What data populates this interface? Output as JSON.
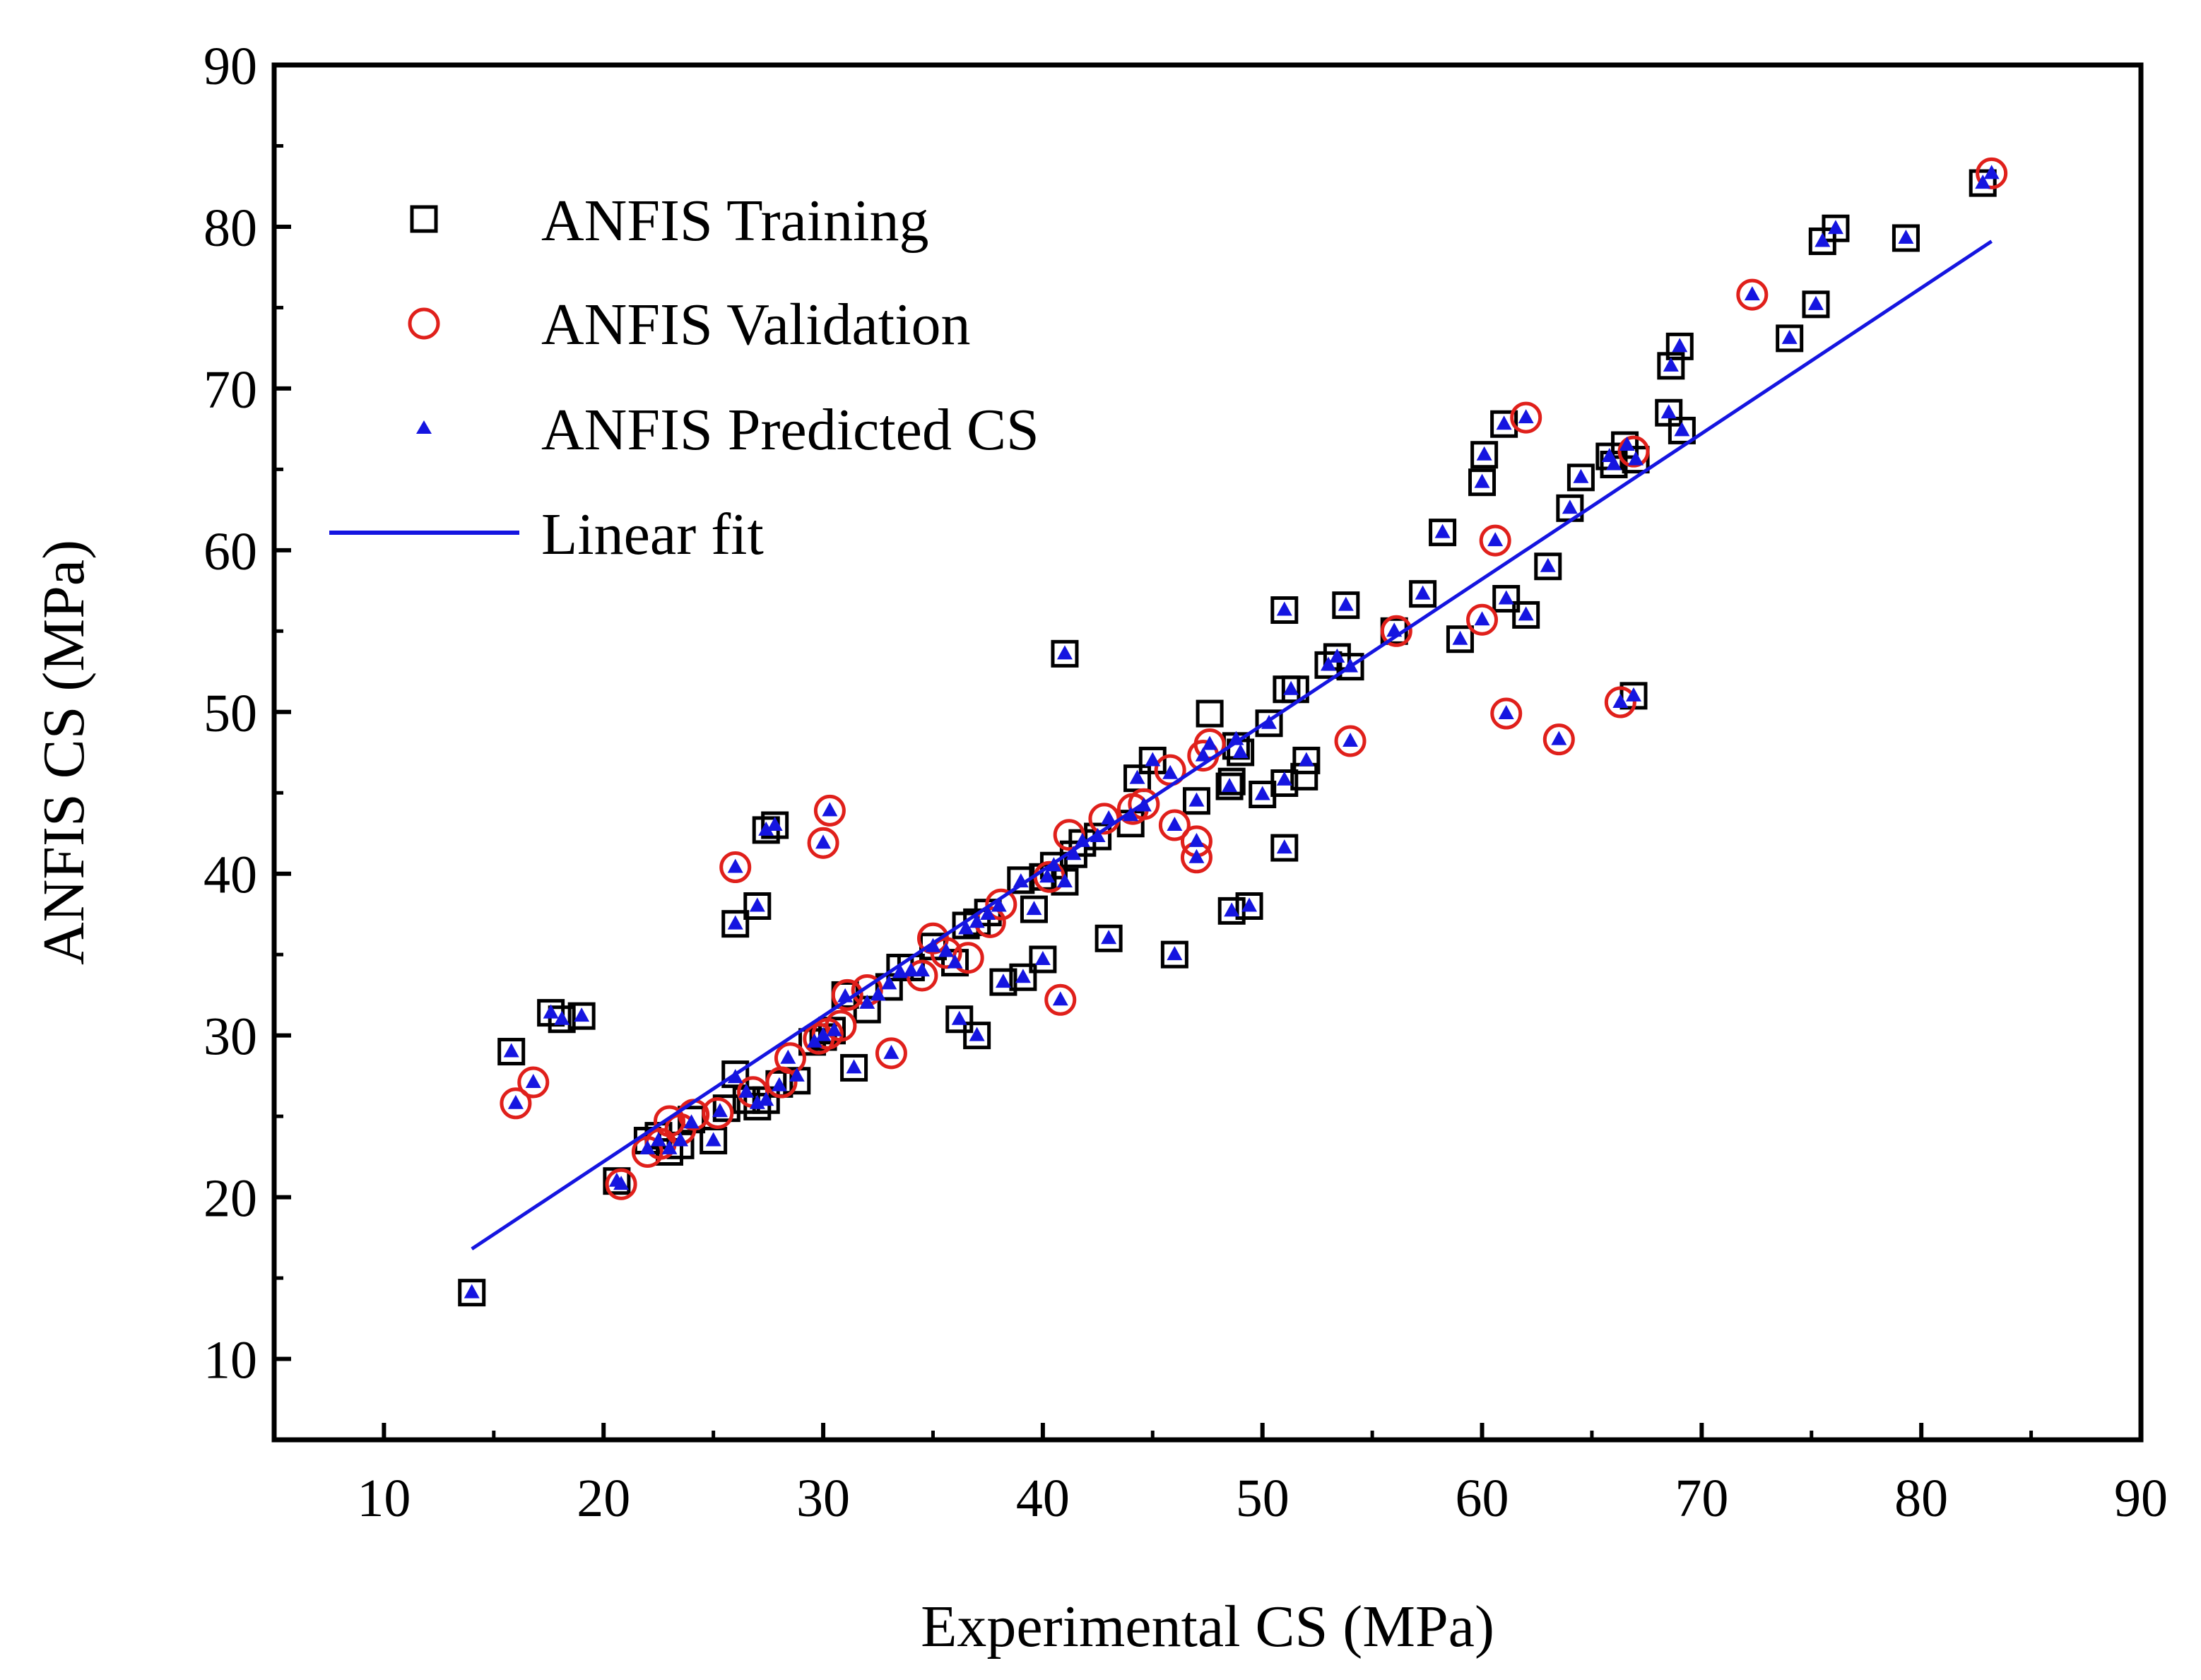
{
  "chart_data": {
    "type": "scatter",
    "xlabel": "Experimental CS (MPa)",
    "ylabel": "ANFIS CS (MPa)",
    "xlim": [
      5,
      90
    ],
    "ylim": [
      5,
      90
    ],
    "xticks": [
      10,
      20,
      30,
      40,
      50,
      60,
      70,
      80,
      90
    ],
    "yticks": [
      10,
      20,
      30,
      40,
      50,
      60,
      70,
      80,
      90
    ],
    "grid": false,
    "legend_position": "top-left",
    "colors": {
      "training": "#000000",
      "validation": "#e0201b",
      "predicted": "#1515e0",
      "fit": "#1515e0"
    },
    "legend": {
      "training": "ANFIS Training",
      "validation": "ANFIS Validation",
      "predicted": "ANFIS Predicted CS",
      "fit": "Linear fit"
    },
    "series": [
      {
        "name": "ANFIS Training",
        "key": "training",
        "marker": "square",
        "points": [
          [
            14,
            14.1
          ],
          [
            15.8,
            29
          ],
          [
            17.6,
            31.4
          ],
          [
            18.1,
            31
          ],
          [
            19,
            31.2
          ],
          [
            20.6,
            21
          ],
          [
            22,
            23.5
          ],
          [
            22.5,
            23.8
          ],
          [
            23,
            22.8
          ],
          [
            23.5,
            23.2
          ],
          [
            24,
            24.8
          ],
          [
            25,
            23.5
          ],
          [
            25.6,
            25.5
          ],
          [
            26,
            27.6
          ],
          [
            26.5,
            26
          ],
          [
            27,
            25.6
          ],
          [
            27.4,
            26
          ],
          [
            28,
            27
          ],
          [
            28.8,
            27.2
          ],
          [
            29.5,
            29.6
          ],
          [
            30,
            29.9
          ],
          [
            30.4,
            30.3
          ],
          [
            31,
            32.5
          ],
          [
            31.4,
            28
          ],
          [
            32,
            31.6
          ],
          [
            33,
            33
          ],
          [
            33.5,
            34.2
          ],
          [
            34,
            34.2
          ],
          [
            35,
            35.5
          ],
          [
            36,
            34.5
          ],
          [
            36.5,
            36.8
          ],
          [
            37,
            37
          ],
          [
            37.5,
            37.6
          ],
          [
            39,
            39.6
          ],
          [
            39.6,
            37.8
          ],
          [
            40,
            39.8
          ],
          [
            40.5,
            40.5
          ],
          [
            41,
            39.5
          ],
          [
            41.4,
            41.2
          ],
          [
            41.8,
            41.9
          ],
          [
            42.5,
            42.3
          ],
          [
            44,
            43.1
          ],
          [
            44.3,
            45.9
          ],
          [
            45,
            47
          ],
          [
            47,
            44.5
          ],
          [
            47.6,
            49.9
          ],
          [
            48.5,
            45.4
          ],
          [
            48.6,
            45.7
          ],
          [
            48.8,
            47.9
          ],
          [
            49,
            47.5
          ],
          [
            50,
            44.9
          ],
          [
            50.3,
            49.3
          ],
          [
            51,
            45.6
          ],
          [
            51.1,
            51.4
          ],
          [
            51.5,
            51.4
          ],
          [
            52,
            47
          ],
          [
            51.9,
            46
          ],
          [
            53,
            52.9
          ],
          [
            53.4,
            53.4
          ],
          [
            54,
            52.8
          ],
          [
            26,
            36.9
          ],
          [
            27,
            38
          ],
          [
            27.4,
            42.7
          ],
          [
            27.8,
            43
          ],
          [
            36.2,
            31
          ],
          [
            37,
            30
          ],
          [
            38.2,
            33.3
          ],
          [
            39.1,
            33.6
          ],
          [
            40,
            34.7
          ],
          [
            43,
            36
          ],
          [
            46,
            35
          ],
          [
            48.6,
            37.7
          ],
          [
            49.4,
            38
          ],
          [
            51,
            41.6
          ],
          [
            41,
            53.6
          ],
          [
            51,
            56.3
          ],
          [
            53.8,
            56.6
          ],
          [
            56,
            55
          ],
          [
            57.3,
            57.3
          ],
          [
            58.2,
            61.1
          ],
          [
            59,
            54.5
          ],
          [
            60,
            64.2
          ],
          [
            60.1,
            65.9
          ],
          [
            61,
            67.8
          ],
          [
            61.1,
            57
          ],
          [
            62,
            56
          ],
          [
            63,
            59
          ],
          [
            64,
            62.6
          ],
          [
            64.5,
            64.5
          ],
          [
            65.8,
            65.8
          ],
          [
            66,
            65.3
          ],
          [
            66.5,
            66.5
          ],
          [
            67,
            65.6
          ],
          [
            66.9,
            51
          ],
          [
            68.6,
            71.4
          ],
          [
            68.5,
            68.5
          ],
          [
            69,
            72.6
          ],
          [
            69.1,
            67.4
          ],
          [
            74,
            73.1
          ],
          [
            75.2,
            75.2
          ],
          [
            75.5,
            79.1
          ],
          [
            76.1,
            79.9
          ],
          [
            79.3,
            79.3
          ],
          [
            82.8,
            82.7
          ]
        ]
      },
      {
        "name": "ANFIS Validation",
        "key": "validation",
        "marker": "circle",
        "points": [
          [
            16,
            25.8
          ],
          [
            16.8,
            27.1
          ],
          [
            20.8,
            20.8
          ],
          [
            22,
            22.8
          ],
          [
            22.6,
            23.3
          ],
          [
            23,
            24.7
          ],
          [
            23.5,
            24.2
          ],
          [
            24.1,
            25.1
          ],
          [
            25.2,
            25.2
          ],
          [
            26.8,
            26.5
          ],
          [
            28.1,
            27.1
          ],
          [
            28.5,
            28.6
          ],
          [
            29.8,
            29.8
          ],
          [
            30.2,
            30.1
          ],
          [
            30.8,
            30.6
          ],
          [
            31.1,
            32.5
          ],
          [
            32,
            32.8
          ],
          [
            26,
            40.4
          ],
          [
            30,
            41.9
          ],
          [
            30.3,
            43.9
          ],
          [
            33.1,
            28.9
          ],
          [
            34.5,
            33.7
          ],
          [
            35,
            36
          ],
          [
            35.6,
            35.1
          ],
          [
            36.6,
            34.8
          ],
          [
            37.6,
            37
          ],
          [
            38.1,
            38.1
          ],
          [
            40.3,
            39.8
          ],
          [
            40.8,
            32.2
          ],
          [
            41.2,
            42.4
          ],
          [
            42.8,
            43.4
          ],
          [
            44.1,
            44
          ],
          [
            44.6,
            44.3
          ],
          [
            45.8,
            46.4
          ],
          [
            46,
            43
          ],
          [
            47,
            42
          ],
          [
            47,
            41
          ],
          [
            47.3,
            47.3
          ],
          [
            47.6,
            48
          ],
          [
            54,
            48.2
          ],
          [
            56.1,
            55
          ],
          [
            60,
            55.7
          ],
          [
            60.6,
            60.6
          ],
          [
            61.1,
            49.9
          ],
          [
            62,
            68.2
          ],
          [
            63.5,
            48.3
          ],
          [
            66.3,
            50.6
          ],
          [
            66.9,
            66.1
          ],
          [
            72.3,
            75.8
          ],
          [
            83.2,
            83.3
          ]
        ]
      },
      {
        "name": "ANFIS Predicted CS",
        "key": "predicted",
        "marker": "triangle",
        "points": [
          [
            14,
            14.1
          ],
          [
            15.8,
            29
          ],
          [
            17.6,
            31.4
          ],
          [
            18.1,
            31
          ],
          [
            19,
            31.2
          ],
          [
            16,
            25.8
          ],
          [
            16.8,
            27.1
          ],
          [
            20.6,
            21
          ],
          [
            20.8,
            20.8
          ],
          [
            22,
            23
          ],
          [
            22.5,
            23.5
          ],
          [
            23,
            23
          ],
          [
            23.5,
            23.5
          ],
          [
            24,
            24.6
          ],
          [
            25,
            23.5
          ],
          [
            25.3,
            25.3
          ],
          [
            26,
            27.4
          ],
          [
            26.5,
            26.5
          ],
          [
            27,
            25.8
          ],
          [
            27.4,
            26
          ],
          [
            28,
            26.9
          ],
          [
            28.4,
            28.6
          ],
          [
            28.8,
            27.5
          ],
          [
            29.6,
            29.6
          ],
          [
            30,
            30
          ],
          [
            30.5,
            30.3
          ],
          [
            31,
            32.4
          ],
          [
            31.4,
            28
          ],
          [
            32,
            32
          ],
          [
            32.5,
            32.5
          ],
          [
            33,
            33.2
          ],
          [
            33.5,
            33.9
          ],
          [
            34,
            34
          ],
          [
            34.5,
            34
          ],
          [
            35,
            35.5
          ],
          [
            35.6,
            35.2
          ],
          [
            36,
            34.5
          ],
          [
            36.5,
            36.6
          ],
          [
            37,
            37
          ],
          [
            37.5,
            37.5
          ],
          [
            38,
            38
          ],
          [
            39,
            39.5
          ],
          [
            39.6,
            37.8
          ],
          [
            40.2,
            39.8
          ],
          [
            40.5,
            40.5
          ],
          [
            41,
            39.5
          ],
          [
            41.4,
            41.2
          ],
          [
            41.8,
            42
          ],
          [
            42.5,
            42.3
          ],
          [
            43,
            43.4
          ],
          [
            44,
            43.6
          ],
          [
            44.3,
            45.9
          ],
          [
            44.6,
            44.2
          ],
          [
            45,
            47
          ],
          [
            45.8,
            46.2
          ],
          [
            46,
            43
          ],
          [
            47,
            44.5
          ],
          [
            47.3,
            47.3
          ],
          [
            47.6,
            48
          ],
          [
            48.5,
            45.4
          ],
          [
            48.8,
            48.3
          ],
          [
            49,
            47.5
          ],
          [
            50,
            44.9
          ],
          [
            50.3,
            49.3
          ],
          [
            51,
            45.8
          ],
          [
            51.3,
            51.4
          ],
          [
            52,
            47
          ],
          [
            53,
            52.9
          ],
          [
            53.4,
            53.4
          ],
          [
            54,
            52.8
          ],
          [
            26,
            40.4
          ],
          [
            30,
            41.9
          ],
          [
            30.3,
            43.9
          ],
          [
            26,
            36.9
          ],
          [
            27,
            38
          ],
          [
            27.4,
            42.7
          ],
          [
            27.8,
            43
          ],
          [
            33.1,
            28.9
          ],
          [
            36.2,
            31
          ],
          [
            37,
            30
          ],
          [
            38.2,
            33.3
          ],
          [
            39.1,
            33.6
          ],
          [
            40,
            34.7
          ],
          [
            40.8,
            32.2
          ],
          [
            43,
            36
          ],
          [
            46,
            35
          ],
          [
            47,
            42
          ],
          [
            47,
            41
          ],
          [
            48.6,
            37.7
          ],
          [
            49.4,
            38
          ],
          [
            51,
            41.6
          ],
          [
            41,
            53.6
          ],
          [
            51,
            56.3
          ],
          [
            53.8,
            56.6
          ],
          [
            54,
            48.2
          ],
          [
            56,
            55
          ],
          [
            57.3,
            57.3
          ],
          [
            58.2,
            61.1
          ],
          [
            59,
            54.5
          ],
          [
            60,
            55.7
          ],
          [
            60,
            64.2
          ],
          [
            60.1,
            65.9
          ],
          [
            60.6,
            60.6
          ],
          [
            61,
            67.8
          ],
          [
            61.1,
            57
          ],
          [
            61.1,
            49.9
          ],
          [
            62,
            68.2
          ],
          [
            62,
            56
          ],
          [
            63,
            59
          ],
          [
            63.5,
            48.3
          ],
          [
            64,
            62.6
          ],
          [
            64.5,
            64.5
          ],
          [
            65.8,
            65.8
          ],
          [
            66,
            65.3
          ],
          [
            66.3,
            50.6
          ],
          [
            66.6,
            66.5
          ],
          [
            67,
            65.6
          ],
          [
            66.9,
            51
          ],
          [
            68.6,
            71.4
          ],
          [
            68.5,
            68.5
          ],
          [
            69,
            72.6
          ],
          [
            69.1,
            67.4
          ],
          [
            72.3,
            75.8
          ],
          [
            74,
            73.1
          ],
          [
            75.2,
            75.2
          ],
          [
            75.5,
            79.1
          ],
          [
            76.1,
            79.9
          ],
          [
            79.3,
            79.3
          ],
          [
            82.8,
            82.7
          ],
          [
            83.2,
            83.3
          ]
        ]
      }
    ],
    "fit_line": {
      "name": "Linear fit",
      "x": [
        14,
        83.2
      ],
      "y": [
        16.8,
        79.1
      ]
    }
  }
}
